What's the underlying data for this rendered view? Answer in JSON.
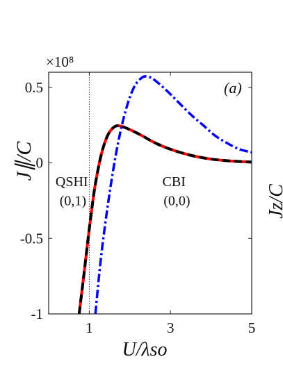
{
  "chart_data": {
    "type": "line",
    "panel_label": "(a)",
    "ylabel": "J∥/C",
    "xlabel": "U/λso",
    "right_axis_label": "Jz/C",
    "multiplier": "×10⁸",
    "xlim": [
      0,
      5
    ],
    "ylim": [
      -1,
      0.6
    ],
    "xticks": [
      1,
      3,
      5
    ],
    "yticks": [
      0.5,
      0,
      -0.5,
      -1
    ],
    "ytick_labels": [
      "0.5",
      "0",
      "-0.5",
      "-1"
    ],
    "grid": false,
    "critical_line_x": 1.0,
    "annotations": [
      {
        "text": "QSHI",
        "x": 0.17,
        "y": -0.155
      },
      {
        "text": "(0,1)",
        "x": 0.27,
        "y": -0.28
      },
      {
        "text": "CBI",
        "x": 2.8,
        "y": -0.155
      },
      {
        "text": "(0,0)",
        "x": 2.83,
        "y": -0.28
      }
    ],
    "series": [
      {
        "style": "solid",
        "color": "#ff0000",
        "x": [
          0.75,
          0.85,
          0.95,
          1.05,
          1.15,
          1.3,
          1.45,
          1.6,
          1.75,
          2.0,
          2.3,
          2.6,
          3.0,
          3.5,
          4.0,
          4.5,
          5.0
        ],
        "y": [
          -1.0,
          -0.78,
          -0.55,
          -0.33,
          -0.14,
          0.06,
          0.18,
          0.235,
          0.245,
          0.22,
          0.18,
          0.135,
          0.09,
          0.05,
          0.025,
          0.012,
          0.005
        ]
      },
      {
        "style": "dashed",
        "color": "#000000",
        "x": [
          0.75,
          0.85,
          0.95,
          1.05,
          1.15,
          1.3,
          1.45,
          1.6,
          1.75,
          2.0,
          2.3,
          2.6,
          3.0,
          3.5,
          4.0,
          4.5,
          5.0
        ],
        "y": [
          -1.0,
          -0.78,
          -0.55,
          -0.33,
          -0.14,
          0.06,
          0.18,
          0.235,
          0.245,
          0.22,
          0.18,
          0.135,
          0.09,
          0.05,
          0.025,
          0.012,
          0.005
        ]
      },
      {
        "style": "dashdot",
        "color": "#0000ff",
        "x": [
          1.15,
          1.3,
          1.5,
          1.7,
          1.9,
          2.1,
          2.3,
          2.45,
          2.6,
          2.9,
          3.2,
          3.5,
          3.8,
          4.1,
          4.4,
          4.7,
          5.0
        ],
        "y": [
          -1.0,
          -0.6,
          -0.2,
          0.12,
          0.35,
          0.5,
          0.565,
          0.57,
          0.55,
          0.48,
          0.4,
          0.32,
          0.25,
          0.18,
          0.13,
          0.09,
          0.07
        ]
      }
    ]
  }
}
